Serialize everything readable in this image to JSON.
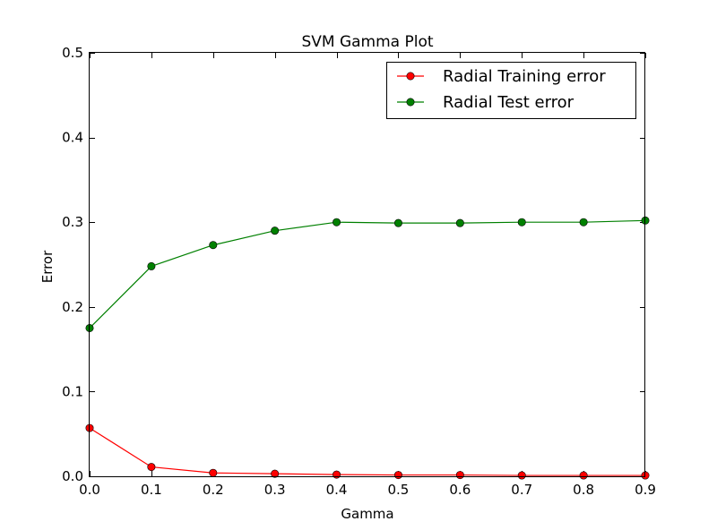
{
  "chart_data": {
    "type": "line",
    "title": "SVM Gamma Plot",
    "xlabel": "Gamma",
    "ylabel": "Error",
    "xlim": [
      0.0,
      0.9
    ],
    "ylim": [
      0.0,
      0.5
    ],
    "xticks": [
      "0.0",
      "0.1",
      "0.2",
      "0.3",
      "0.4",
      "0.5",
      "0.6",
      "0.7",
      "0.8",
      "0.9"
    ],
    "yticks": [
      "0.0",
      "0.1",
      "0.2",
      "0.3",
      "0.4",
      "0.5"
    ],
    "x": [
      0.0,
      0.1,
      0.2,
      0.3,
      0.4,
      0.5,
      0.6,
      0.7,
      0.8,
      0.9
    ],
    "series": [
      {
        "name": "Radial Training error",
        "color": "#ff0000",
        "values": [
          0.057,
          0.011,
          0.004,
          0.003,
          0.002,
          0.0015,
          0.0015,
          0.001,
          0.001,
          0.001
        ]
      },
      {
        "name": "Radial Test error",
        "color": "#008000",
        "values": [
          0.175,
          0.248,
          0.273,
          0.29,
          0.3,
          0.299,
          0.299,
          0.3,
          0.3,
          0.302
        ]
      }
    ],
    "grid": false,
    "legend_position": "top-right"
  }
}
